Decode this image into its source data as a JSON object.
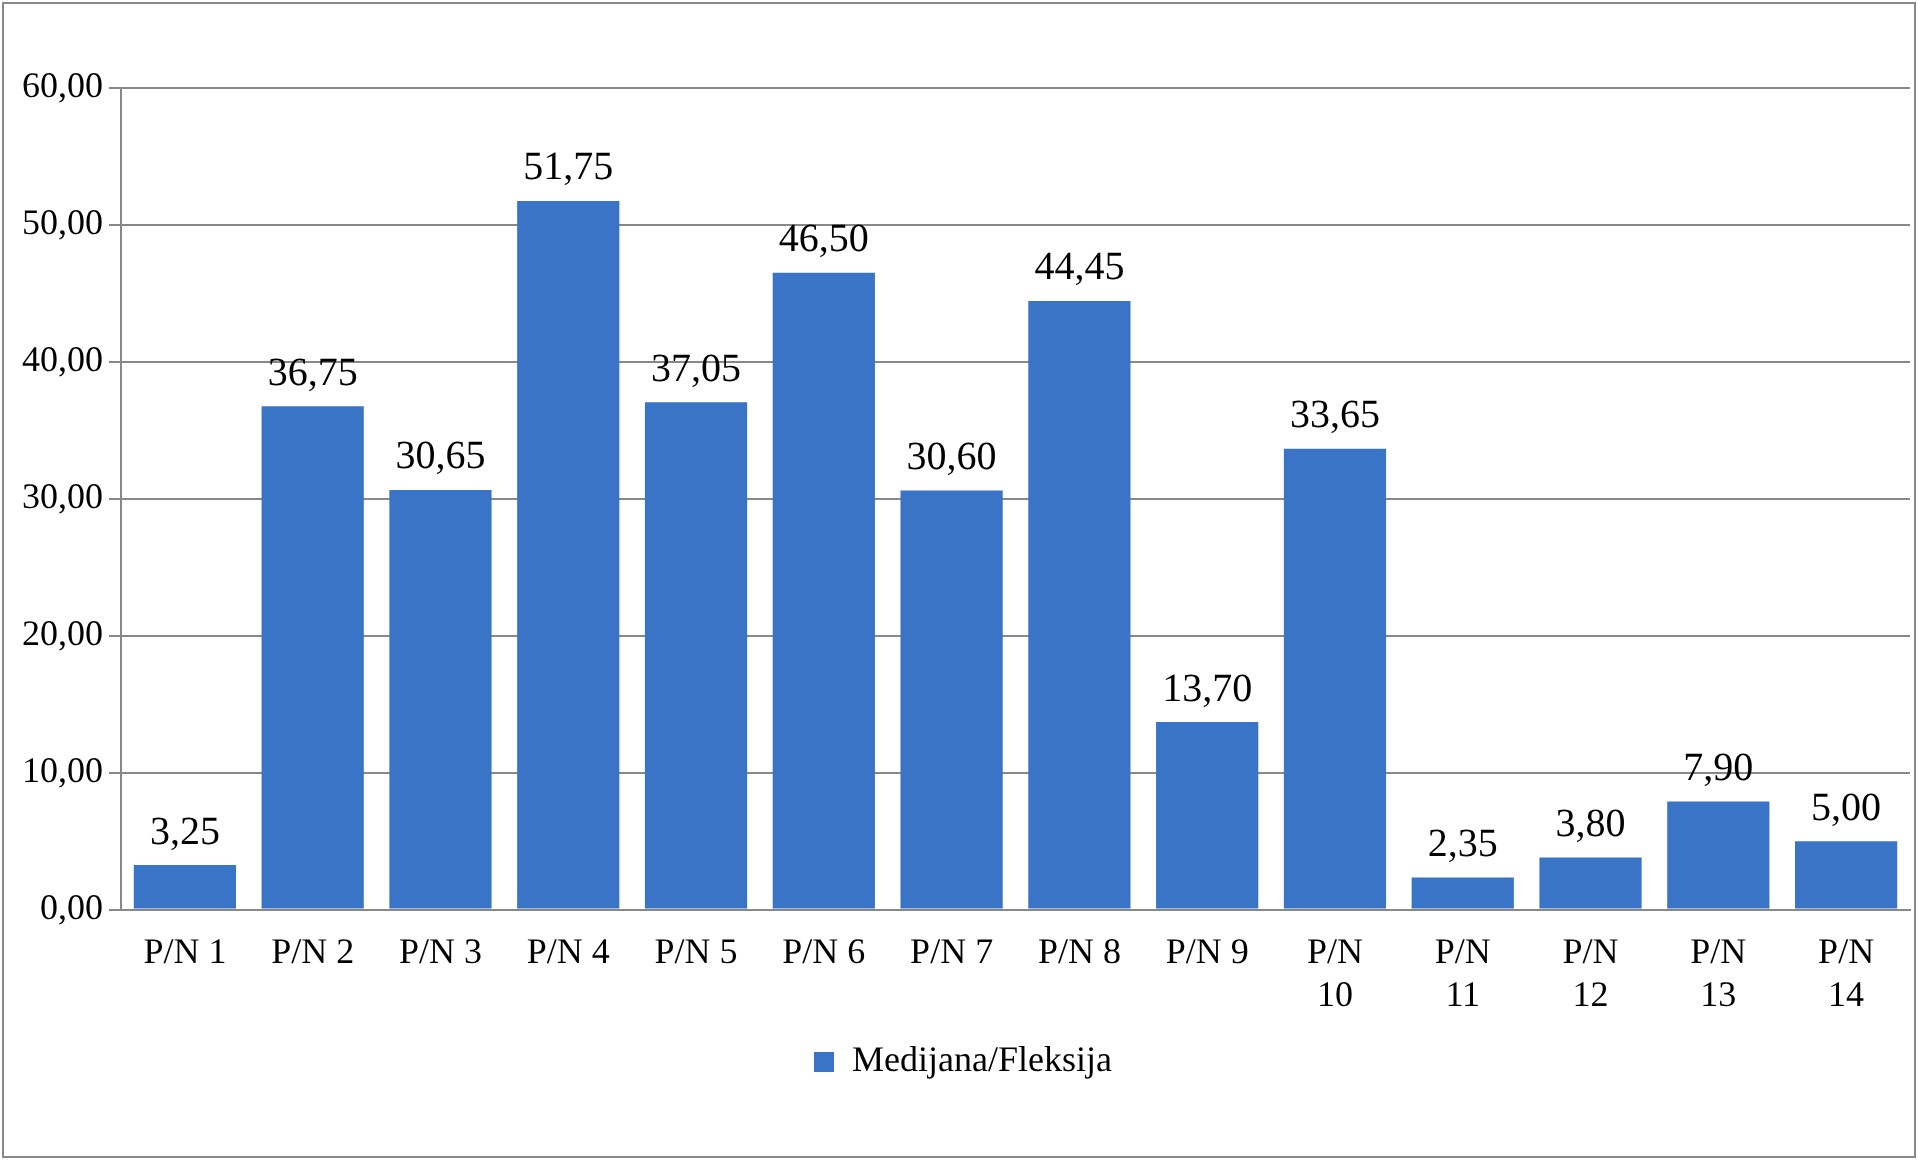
{
  "chart_data": {
    "type": "bar",
    "categories": [
      "P/N 1",
      "P/N 2",
      "P/N 3",
      "P/N 4",
      "P/N 5",
      "P/N 6",
      "P/N 7",
      "P/N 8",
      "P/N 9",
      "P/N 10",
      "P/N 11",
      "P/N 12",
      "P/N 13",
      "P/N 14"
    ],
    "series": [
      {
        "name": "Medijana/Fleksija",
        "color": "#3a74c6",
        "values": [
          3.25,
          36.75,
          30.65,
          51.75,
          37.05,
          46.5,
          30.6,
          44.45,
          13.7,
          33.65,
          2.35,
          3.8,
          7.9,
          5.0
        ],
        "value_labels": [
          "3,25",
          "36,75",
          "30,65",
          "51,75",
          "37,05",
          "46,50",
          "30,60",
          "44,45",
          "13,70",
          "33,65",
          "2,35",
          "3,80",
          "7,90",
          "5,00"
        ]
      }
    ],
    "ylim": [
      0,
      60
    ],
    "yticks": [
      {
        "value": 0,
        "label": "0,00"
      },
      {
        "value": 10,
        "label": "10,00"
      },
      {
        "value": 20,
        "label": "20,00"
      },
      {
        "value": 30,
        "label": "30,00"
      },
      {
        "value": 40,
        "label": "40,00"
      },
      {
        "value": 50,
        "label": "50,00"
      },
      {
        "value": 60,
        "label": "60,00"
      }
    ],
    "grid": "y",
    "legend": "bottom"
  }
}
